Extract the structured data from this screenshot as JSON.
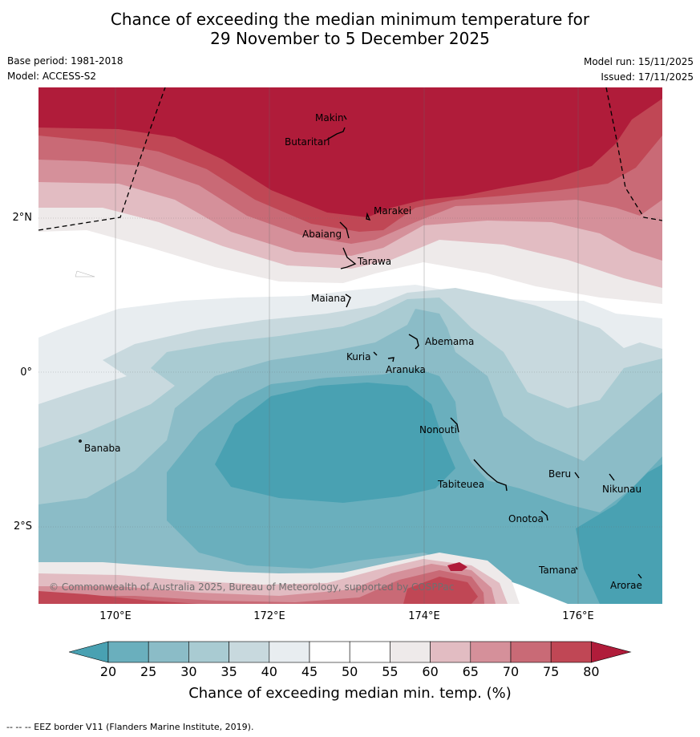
{
  "title": {
    "line1": "Chance of exceeding the median minimum temperature for",
    "line2": "29 November to 5 December 2025"
  },
  "meta": {
    "base_period": "Base period: 1981-2018",
    "model": "Model: ACCESS-S2",
    "model_run": "Model run: 15/11/2025",
    "issued": "Issued: 17/11/2025"
  },
  "axes": {
    "x_ticks": [
      "170°E",
      "172°E",
      "174°E",
      "176°E"
    ],
    "y_ticks": [
      "2°N",
      "0°",
      "2°S"
    ]
  },
  "islands": [
    {
      "name": "Makin"
    },
    {
      "name": "Butaritari"
    },
    {
      "name": "Marakei"
    },
    {
      "name": "Abaiang"
    },
    {
      "name": "Tarawa"
    },
    {
      "name": "Maiana"
    },
    {
      "name": "Abemama"
    },
    {
      "name": "Kuria"
    },
    {
      "name": "Aranuka"
    },
    {
      "name": "Banaba"
    },
    {
      "name": "Nonouti"
    },
    {
      "name": "Tabiteuea"
    },
    {
      "name": "Beru"
    },
    {
      "name": "Nikunau"
    },
    {
      "name": "Onotoa"
    },
    {
      "name": "Tamana"
    },
    {
      "name": "Arorae"
    }
  ],
  "copyright": "© Commonwealth of Australia 2025, Bureau of Meteorology, supported by COSPPac",
  "colorbar": {
    "ticks": [
      "20",
      "25",
      "30",
      "35",
      "40",
      "45",
      "50",
      "55",
      "60",
      "65",
      "70",
      "75",
      "80"
    ],
    "colors": [
      "#49a1b2",
      "#6aafbd",
      "#8bbcc7",
      "#a9cbd2",
      "#c8d9de",
      "#e8edf0",
      "#ffffff",
      "#ffffff",
      "#eeeaea",
      "#e2bcc2",
      "#d5909a",
      "#c96a76",
      "#c04755",
      "#b01c3a"
    ],
    "title": "Chance of exceeding median min. temp. (%)"
  },
  "footer": "--  --  -- EEZ border V11 (Flanders Marine Institute, 2019)."
}
